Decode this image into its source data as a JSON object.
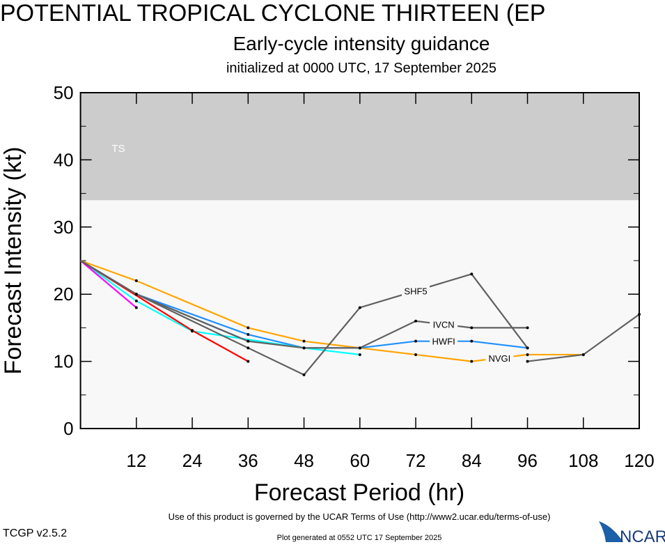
{
  "chart_data": {
    "type": "line",
    "title": "POTENTIAL TROPICAL CYCLONE THIRTEEN (EP",
    "subtitle": "Early-cycle intensity guidance",
    "subtitle2": "initialized at 0000 UTC, 17 September 2025",
    "xlabel": "Forecast Period (hr)",
    "ylabel": "Forecast Intensity (kt)",
    "xlim": [
      0,
      120
    ],
    "ylim": [
      0,
      50
    ],
    "xticks": [
      12,
      24,
      36,
      48,
      60,
      72,
      84,
      96,
      108,
      120
    ],
    "yticks": [
      0,
      10,
      20,
      30,
      40,
      50
    ],
    "bands": [
      {
        "label": "TS",
        "from": 34,
        "to": 50,
        "color": "#cccccc"
      }
    ],
    "background_color": "#f8f8f8",
    "series": [
      {
        "name": "NVGI",
        "color": "#ffa500",
        "x": [
          0,
          12,
          36,
          48,
          60,
          72,
          84,
          96,
          108
        ],
        "y": [
          25,
          22,
          15,
          13,
          12,
          11,
          10,
          11,
          11
        ]
      },
      {
        "name": "HWFI",
        "color": "#1e90ff",
        "x": [
          0,
          12,
          36,
          48,
          60,
          72,
          84,
          96
        ],
        "y": [
          25,
          20,
          14,
          12,
          12,
          13,
          13,
          12
        ]
      },
      {
        "color": "#1e90ff",
        "x": [
          0,
          12,
          36
        ],
        "y": [
          25,
          20,
          13
        ]
      },
      {
        "color": "#00ffff",
        "x": [
          0,
          12,
          24,
          48,
          60
        ],
        "y": [
          25,
          19,
          14.5,
          12,
          11
        ]
      },
      {
        "color": "#ff00ff",
        "x": [
          0,
          12
        ],
        "y": [
          25,
          18
        ]
      },
      {
        "color": "#ff0000",
        "x": [
          0,
          24,
          36
        ],
        "y": [
          25,
          14.6,
          10
        ]
      },
      {
        "name": "IVCN",
        "color": "#606060",
        "x": [
          0,
          12,
          36,
          48,
          60,
          72,
          84,
          96
        ],
        "y": [
          25,
          20,
          13,
          12,
          12,
          16,
          15,
          15
        ]
      },
      {
        "name": "SHF5",
        "color": "#606060",
        "x": [
          0,
          12,
          36,
          48,
          60,
          84,
          96
        ],
        "y": [
          25,
          20,
          12,
          8,
          18,
          23,
          12
        ]
      },
      {
        "color": "#606060",
        "x": [
          96,
          108,
          120
        ],
        "y": [
          10,
          11,
          17
        ]
      }
    ]
  },
  "footer": {
    "terms": "Use of this product is governed by the UCAR Terms of Use (http://www2.ucar.edu/terms-of-use)",
    "version": "TCGP v2.5.2",
    "generated": "Plot generated at 0552 UTC   17 September 2025",
    "logo_text": "NCAR"
  }
}
